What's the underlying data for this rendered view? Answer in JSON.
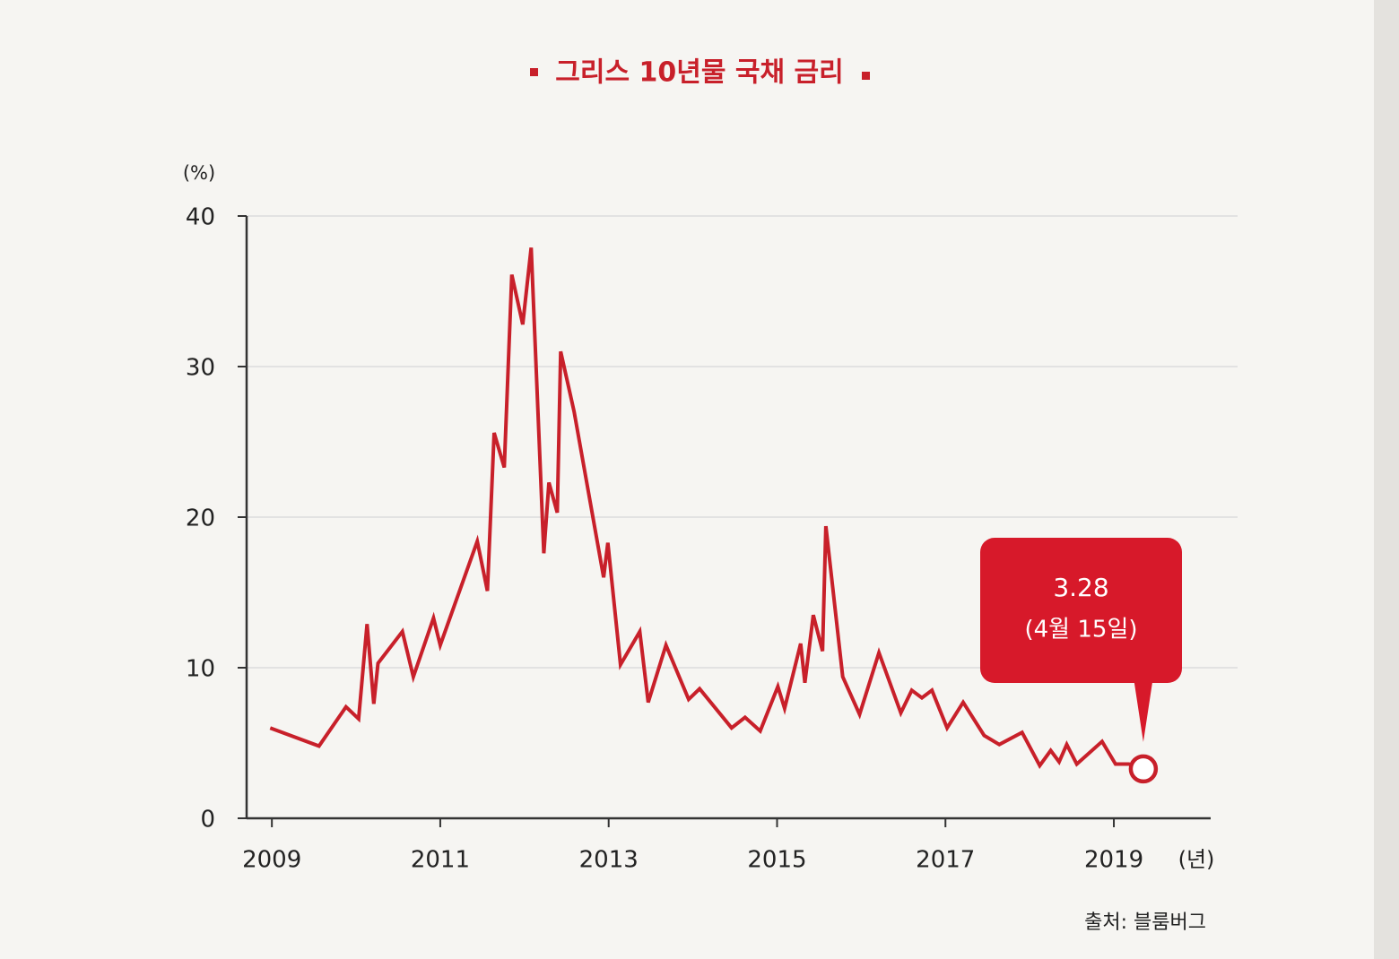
{
  "chart_data": {
    "type": "line",
    "title": "그리스 10년물 국채 금리",
    "y_label": "(%)",
    "x_label": "(년)",
    "source": "출처: 블룸버그",
    "annotation": "(4월 15일)",
    "color": "#c8202a",
    "grid": true,
    "xlim": [
      2008.7,
      2020.15
    ],
    "xticks": [
      2009,
      2011,
      2013,
      2015,
      2017,
      2019
    ],
    "ylim": [
      0,
      40
    ],
    "yticks": [
      0,
      10,
      20,
      30,
      40
    ],
    "x": [
      2008.98,
      2009.56,
      2009.88,
      2010.03,
      2010.13,
      2010.21,
      2010.26,
      2010.55,
      2010.68,
      2010.92,
      2011.0,
      2011.44,
      2011.56,
      2011.64,
      2011.76,
      2011.85,
      2011.98,
      2012.08,
      2012.23,
      2012.29,
      2012.39,
      2012.43,
      2012.59,
      2012.94,
      2012.99,
      2013.14,
      2013.37,
      2013.47,
      2013.68,
      2013.95,
      2014.08,
      2014.46,
      2014.62,
      2014.8,
      2015.01,
      2015.09,
      2015.28,
      2015.33,
      2015.43,
      2015.54,
      2015.58,
      2015.78,
      2015.98,
      2016.21,
      2016.47,
      2016.6,
      2016.72,
      2016.84,
      2017.02,
      2017.21,
      2017.46,
      2017.64,
      2017.91,
      2018.12,
      2018.25,
      2018.35,
      2018.44,
      2018.56,
      2018.86,
      2019.02,
      2019.18,
      2019.35
    ],
    "values": [
      6.0,
      4.8,
      7.4,
      6.6,
      12.9,
      7.6,
      10.3,
      12.4,
      9.4,
      13.3,
      11.5,
      18.4,
      15.1,
      25.6,
      23.3,
      36.1,
      32.8,
      37.9,
      17.6,
      22.3,
      20.3,
      31.0,
      27.0,
      16.0,
      18.3,
      10.2,
      12.4,
      7.7,
      11.5,
      7.9,
      8.6,
      6.0,
      6.7,
      5.8,
      8.75,
      7.3,
      11.6,
      9.0,
      13.5,
      11.1,
      19.4,
      9.4,
      6.9,
      11.0,
      7.0,
      8.5,
      8.0,
      8.5,
      6.0,
      7.7,
      5.5,
      4.9,
      5.7,
      3.5,
      4.5,
      3.75,
      4.9,
      3.6,
      5.1,
      3.6,
      3.6,
      3.28
    ]
  }
}
